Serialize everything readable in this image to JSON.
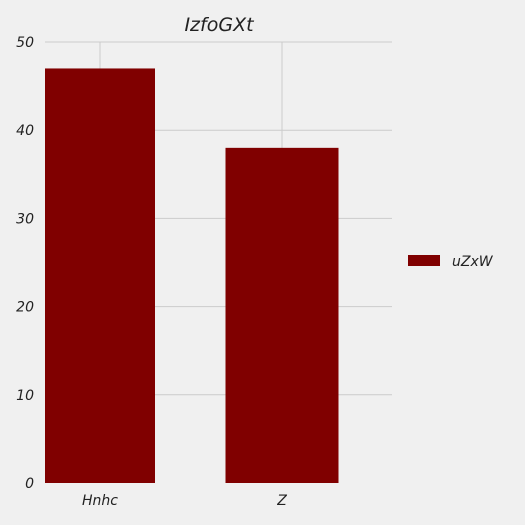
{
  "chart_data": {
    "type": "bar",
    "title": "IzfoGXt",
    "xlabel": "",
    "ylabel": "",
    "categories": [
      "Hnhc",
      "Z"
    ],
    "series": [
      {
        "name": "uZxW",
        "values": [
          47,
          38
        ],
        "color": "#800000"
      }
    ],
    "ylim": [
      0,
      50
    ],
    "yticks": [
      0,
      10,
      20,
      30,
      40,
      50
    ],
    "grid": true,
    "legend_position": "right",
    "background_color": "#f0f0f0",
    "grid_color": "#cbcbcb"
  }
}
